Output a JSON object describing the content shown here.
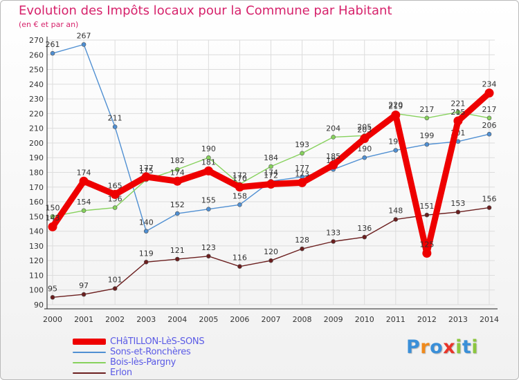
{
  "title": "Evolution des Impôts locaux pour la Commune par Habitant",
  "subtitle": "(en € et par an)",
  "logo": {
    "letters": [
      "P",
      "r",
      "o",
      "x",
      "i",
      "t",
      "i"
    ],
    "colors": [
      "#3a8fd8",
      "#f08a1c",
      "#3a8fd8",
      "#e8352a",
      "#8cc63e",
      "#3a8fd8",
      "#8cc63e"
    ]
  },
  "chart_data": {
    "type": "line",
    "title": "Evolution des Impôts locaux pour la Commune par Habitant",
    "subtitle": "(en € et par an)",
    "xlabel": "",
    "ylabel": "",
    "x": [
      2000,
      2001,
      2002,
      2003,
      2004,
      2005,
      2006,
      2007,
      2008,
      2009,
      2010,
      2011,
      2012,
      2013,
      2014
    ],
    "ylim": [
      90,
      270
    ],
    "yticks": [
      90,
      100,
      110,
      120,
      130,
      140,
      150,
      160,
      170,
      180,
      190,
      200,
      210,
      220,
      230,
      240,
      250,
      260,
      270
    ],
    "grid": true,
    "legend": "bottom-left",
    "series": [
      {
        "name": "CHâTILLON-LèS-SONS",
        "color": "#ee0000",
        "values": [
          143,
          174,
          165,
          177,
          174,
          181,
          170,
          172,
          173,
          185,
          203,
          219,
          125,
          215,
          234
        ]
      },
      {
        "name": "Sons-et-Ronchères",
        "color": "#4f8fd2",
        "values": [
          261,
          267,
          211,
          140,
          152,
          155,
          158,
          174,
          177,
          182,
          190,
          195,
          199,
          201,
          206
        ]
      },
      {
        "name": "Bois-lès-Pargny",
        "color": "#86d15c",
        "values": [
          150,
          154,
          156,
          175,
          182,
          190,
          172,
          184,
          193,
          204,
          205,
          220,
          217,
          221,
          217
        ]
      },
      {
        "name": "Erlon",
        "color": "#6b1e1e",
        "values": [
          95,
          97,
          101,
          119,
          121,
          123,
          116,
          120,
          128,
          133,
          136,
          148,
          151,
          153,
          156
        ]
      }
    ]
  }
}
